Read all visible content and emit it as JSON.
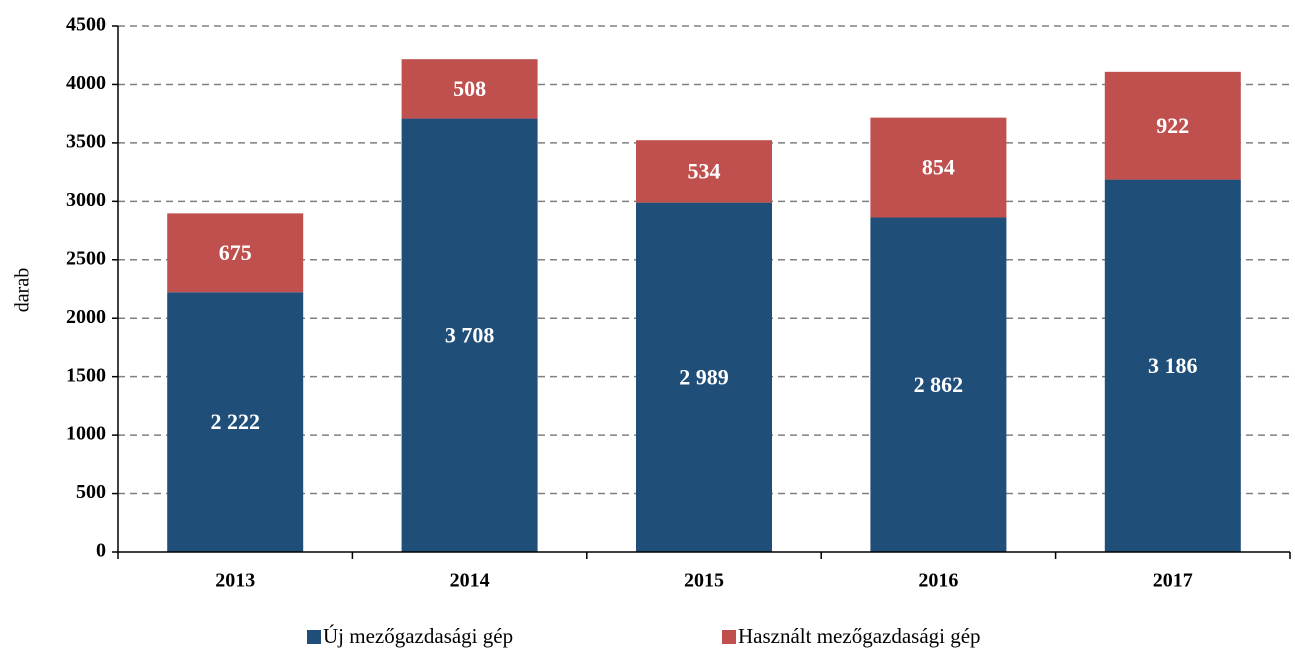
{
  "chart_data": {
    "type": "stacked_bar",
    "y_label": "darab",
    "categories": [
      "2013",
      "2014",
      "2015",
      "2016",
      "2017"
    ],
    "series": [
      {
        "name": "Új mezőgazdasági gép",
        "color": "#1f4e79",
        "values": [
          2222,
          3708,
          2989,
          2862,
          3186
        ],
        "value_labels": [
          "2 222",
          "3 708",
          "2 989",
          "2 862",
          "3 186"
        ]
      },
      {
        "name": "Használt mezőgazdasági gép",
        "color": "#c0504d",
        "values": [
          675,
          508,
          534,
          854,
          922
        ]
      }
    ],
    "ylim": [
      0,
      4500
    ],
    "yticks": [
      0,
      500,
      1000,
      1500,
      2000,
      2500,
      3000,
      3500,
      4000,
      4500
    ],
    "grid": true,
    "legend": "bottom"
  }
}
